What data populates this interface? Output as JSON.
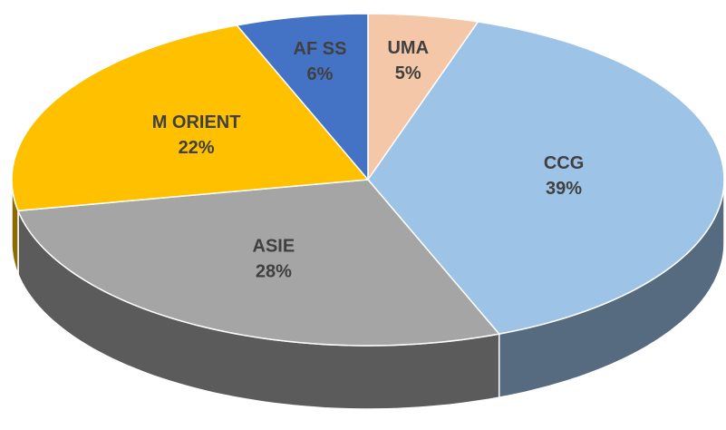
{
  "chart_data": {
    "type": "pie3d",
    "categories": [
      "UMA",
      "CCG",
      "ASIE",
      "M ORIENT",
      "AF SS"
    ],
    "values": [
      5,
      39,
      28,
      22,
      6
    ],
    "value_labels": [
      "5%",
      "39%",
      "28%",
      "22%",
      "6%"
    ],
    "colors": [
      "#f4c7a8",
      "#9dc3e6",
      "#a5a5a5",
      "#ffc000",
      "#4472c4"
    ]
  }
}
